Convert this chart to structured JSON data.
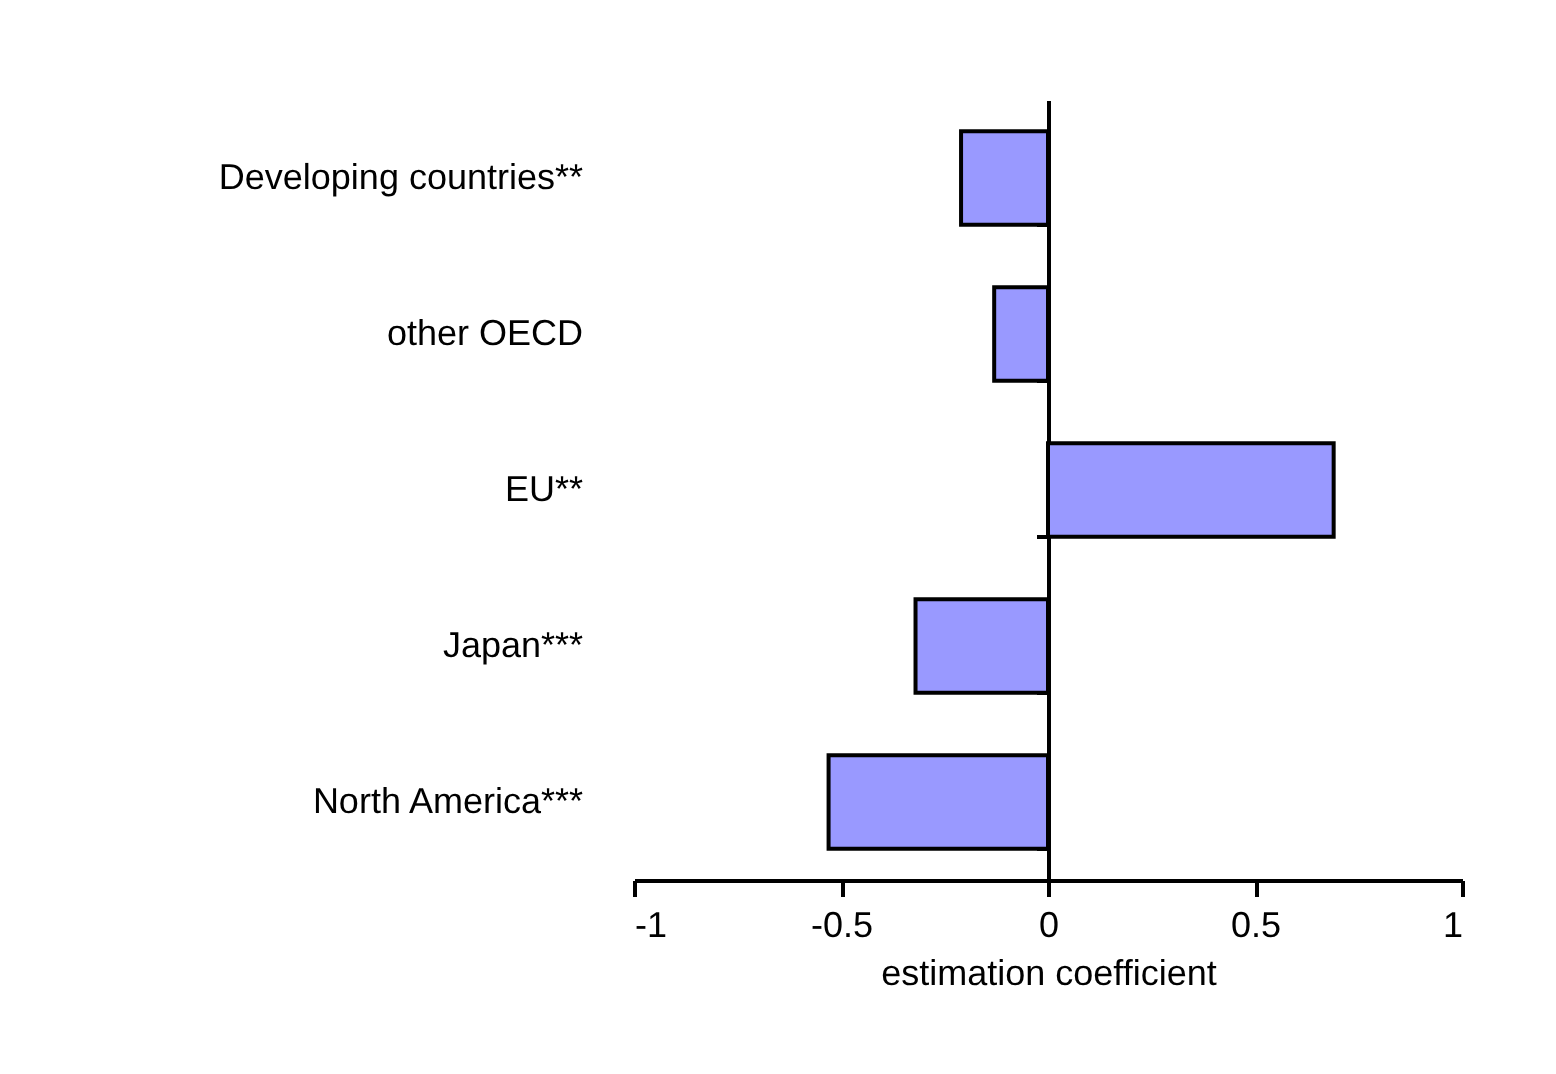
{
  "chart_data": {
    "type": "bar",
    "orientation": "horizontal",
    "xlabel": "estimation coefficient",
    "categories": [
      "Developing countries**",
      "other OECD",
      "EU**",
      "Japan***",
      "North America***"
    ],
    "values": [
      -0.21,
      -0.13,
      0.69,
      -0.32,
      -0.53
    ],
    "color": "#9999ff",
    "xlim": [
      -1,
      1
    ],
    "xticks": [
      -1,
      -0.5,
      0,
      0.5,
      1
    ]
  }
}
